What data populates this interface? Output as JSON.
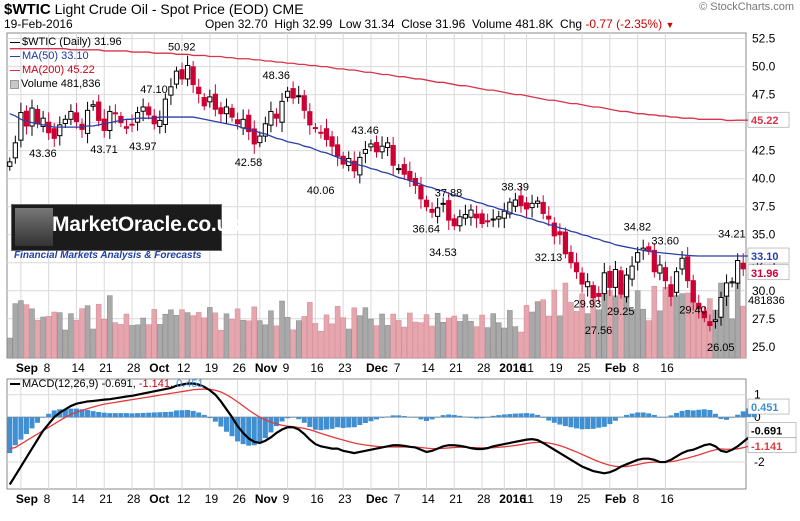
{
  "header": {
    "symbol": "$WTIC",
    "name": "Light Crude Oil - Spot Price (EOD)",
    "exchange": "CME",
    "date": "19-Feb-2016",
    "watermark": "© StockCharts.com",
    "open_label": "Open",
    "open": "32.70",
    "high_label": "High",
    "high": "32.99",
    "low_label": "Low",
    "low": "31.34",
    "close_label": "Close",
    "close": "31.96",
    "volume_label": "Volume",
    "volume": "481.8K",
    "chg_label": "Chg",
    "chg": "-0.77 (-2.35%)"
  },
  "legend": {
    "main": "$WTIC (Daily) 31.96",
    "ma50": "MA(50) 33.10",
    "ma200": "MA(200) 45.22",
    "volume": "Volume 481,836"
  },
  "macd_legend": {
    "label": "MACD(12,26,9)",
    "macd": "-0.691",
    "signal": "-1.141",
    "hist": "0.451"
  },
  "logo": {
    "text": "MarketOracle.co.uk",
    "tagline": "Financial Markets Analysis & Forecasts"
  },
  "colors": {
    "up": "#000000",
    "down": "#cc0033",
    "ma50": "#2b3ea8",
    "ma200": "#d8334a",
    "hist": "#3f8fd2",
    "grid": "#d9d9d9",
    "vol_up": "#a9a9a9",
    "vol_down": "#e6a6ae"
  },
  "chart_data": [
    {
      "type": "candlestick",
      "title": "$WTIC (Daily)",
      "ylim": [
        24,
        53
      ],
      "yticks": [
        25.0,
        27.5,
        30.0,
        32.5,
        35.0,
        37.5,
        40.0,
        42.5,
        45.0,
        47.5,
        50.0,
        52.5
      ],
      "ytick_labels": [
        "25.0",
        "27.5",
        "30.0",
        "32.5",
        "35.0",
        "37.5",
        "40.0",
        "42.5",
        "45.0",
        "47.5",
        "50.0",
        "52.5"
      ],
      "xtick_labels": [
        "Sep",
        "8",
        "14",
        "21",
        "28",
        "Oct",
        "12",
        "19",
        "26",
        "Nov",
        "9",
        "16",
        "23",
        "Dec",
        "7",
        "14",
        "21",
        "28",
        "2016",
        "11",
        "19",
        "25",
        "Feb",
        "8",
        "16"
      ],
      "xtick_bold": [
        "Sep",
        "Oct",
        "Nov",
        "Dec",
        "2016",
        "Feb"
      ],
      "grid": true,
      "annotations": [
        {
          "text": "50.92",
          "value": 50.92
        },
        {
          "text": "48.36",
          "value": 48.36
        },
        {
          "text": "47.10",
          "value": 47.1
        },
        {
          "text": "43.36",
          "value": 43.36
        },
        {
          "text": "43.71",
          "value": 43.71
        },
        {
          "text": "43.97",
          "value": 43.97
        },
        {
          "text": "42.58",
          "value": 42.58
        },
        {
          "text": "43.46",
          "value": 43.46
        },
        {
          "text": "40.06",
          "value": 40.06
        },
        {
          "text": "37.88",
          "value": 37.88
        },
        {
          "text": "36.64",
          "value": 36.64
        },
        {
          "text": "34.53",
          "value": 34.53
        },
        {
          "text": "38.39",
          "value": 38.39
        },
        {
          "text": "32.13",
          "value": 32.13
        },
        {
          "text": "29.93",
          "value": 29.93
        },
        {
          "text": "27.56",
          "value": 27.56
        },
        {
          "text": "29.25",
          "value": 29.25
        },
        {
          "text": "34.82",
          "value": 34.82
        },
        {
          "text": "33.60",
          "value": 33.6
        },
        {
          "text": "29.40",
          "value": 29.4
        },
        {
          "text": "26.05",
          "value": 26.05
        },
        {
          "text": "34.21",
          "value": 34.21
        }
      ],
      "closes": [
        41.5,
        43.2,
        45.9,
        44.7,
        46.3,
        44.9,
        45.4,
        44.1,
        43.6,
        44.8,
        45.3,
        46.0,
        45.1,
        44.4,
        46.1,
        46.6,
        45.2,
        44.3,
        46.0,
        45.8,
        45.0,
        44.5,
        44.8,
        45.9,
        46.4,
        45.7,
        44.9,
        45.2,
        47.1,
        48.2,
        49.6,
        48.9,
        50.1,
        48.4,
        47.6,
        46.5,
        47.3,
        46.2,
        45.8,
        46.4,
        45.5,
        44.9,
        45.3,
        44.2,
        43.1,
        43.8,
        44.9,
        46.0,
        45.4,
        46.9,
        47.8,
        47.2,
        47.4,
        46.1,
        44.8,
        44.5,
        44.1,
        43.5,
        42.9,
        42.0,
        41.3,
        41.8,
        40.7,
        41.9,
        42.6,
        43.1,
        42.4,
        42.9,
        43.2,
        41.2,
        40.9,
        40.4,
        39.9,
        39.4,
        38.2,
        37.5,
        37.0,
        37.4,
        37.8,
        36.3,
        35.8,
        36.6,
        36.8,
        37.2,
        36.5,
        36.0,
        36.2,
        36.4,
        36.6,
        37.1,
        37.9,
        38.1,
        37.6,
        37.3,
        37.8,
        38.0,
        36.9,
        36.4,
        34.9,
        35.0,
        33.3,
        32.5,
        31.7,
        30.6,
        30.8,
        29.4,
        29.5,
        31.6,
        30.3,
        31.9,
        29.7,
        31.4,
        32.2,
        33.4,
        33.8,
        33.6,
        31.7,
        32.3,
        30.9,
        29.5,
        31.7,
        32.9,
        30.9,
        29.0,
        28.4,
        27.6,
        26.9,
        27.4,
        29.4,
        30.7,
        30.8,
        32.7,
        31.96
      ],
      "ma50": [
        45.8,
        45.6,
        45.3,
        45.1,
        45.0,
        44.9,
        44.8,
        44.7,
        44.6,
        44.6,
        44.6,
        44.6,
        44.6,
        44.6,
        44.7,
        44.7,
        44.8,
        44.9,
        45.0,
        45.1,
        45.2,
        45.3,
        45.3,
        45.4,
        45.4,
        45.4,
        45.4,
        45.5,
        45.5,
        45.5,
        45.5,
        45.5,
        45.5,
        45.5,
        45.4,
        45.3,
        45.2,
        45.1,
        45.0,
        44.9,
        44.8,
        44.7,
        44.5,
        44.4,
        44.3,
        44.1,
        44.0,
        43.8,
        43.6,
        43.5,
        43.3,
        43.2,
        43.1,
        42.9,
        42.8,
        42.6,
        42.4,
        42.3,
        42.1,
        41.9,
        41.7,
        41.5,
        41.4,
        41.2,
        41.1,
        40.9,
        40.8,
        40.6,
        40.5,
        40.3,
        40.1,
        40.0,
        39.8,
        39.7,
        39.5,
        39.3,
        39.2,
        39.0,
        38.9,
        38.7,
        38.5,
        38.4,
        38.2,
        38.1,
        37.9,
        37.8,
        37.6,
        37.5,
        37.3,
        37.2,
        37.0,
        36.8,
        36.7,
        36.5,
        36.4,
        36.2,
        36.1,
        35.9,
        35.8,
        35.6,
        35.5,
        35.3,
        35.2,
        35.0,
        34.9,
        34.7,
        34.6,
        34.4,
        34.3,
        34.1,
        34.0,
        33.9,
        33.8,
        33.7,
        33.6,
        33.5,
        33.45,
        33.4,
        33.35,
        33.3,
        33.25,
        33.2,
        33.15,
        33.12,
        33.1,
        33.1,
        33.1,
        33.1,
        33.1,
        33.1,
        33.1,
        33.1,
        33.1,
        33.1,
        33.1
      ],
      "ma200": [
        51.6,
        51.6,
        51.6,
        51.6,
        51.6,
        51.6,
        51.6,
        51.6,
        51.6,
        51.6,
        51.6,
        51.5,
        51.5,
        51.5,
        51.5,
        51.5,
        51.5,
        51.4,
        51.4,
        51.4,
        51.4,
        51.4,
        51.3,
        51.3,
        51.3,
        51.3,
        51.2,
        51.2,
        51.2,
        51.2,
        51.1,
        51.1,
        51.1,
        51.0,
        51.0,
        51.0,
        50.9,
        50.9,
        50.9,
        50.8,
        50.8,
        50.7,
        50.7,
        50.7,
        50.6,
        50.6,
        50.5,
        50.5,
        50.4,
        50.4,
        50.3,
        50.3,
        50.2,
        50.2,
        50.1,
        50.1,
        50.0,
        50.0,
        49.9,
        49.8,
        49.8,
        49.7,
        49.7,
        49.6,
        49.5,
        49.5,
        49.4,
        49.3,
        49.3,
        49.2,
        49.1,
        49.1,
        49.0,
        48.9,
        48.9,
        48.8,
        48.7,
        48.6,
        48.6,
        48.5,
        48.4,
        48.3,
        48.3,
        48.2,
        48.1,
        48.0,
        47.9,
        47.9,
        47.8,
        47.7,
        47.6,
        47.5,
        47.5,
        47.4,
        47.3,
        47.2,
        47.1,
        47.0,
        47.0,
        46.9,
        46.8,
        46.7,
        46.7,
        46.6,
        46.5,
        46.4,
        46.4,
        46.3,
        46.2,
        46.1,
        46.0,
        46.0,
        45.9,
        45.8,
        45.8,
        45.7,
        45.7,
        45.6,
        45.6,
        45.5,
        45.5,
        45.4,
        45.4,
        45.4,
        45.3,
        45.3,
        45.3,
        45.3,
        45.3,
        45.2,
        45.2,
        45.22,
        45.22,
        45.22,
        45.22
      ],
      "last_ma50_label": "33.10",
      "last_ma200_label": "45.22",
      "last_close_label": "31.96",
      "last_volume_label": "481836"
    },
    {
      "type": "line",
      "title": "MACD(12,26,9)",
      "ylim": [
        -3.2,
        1.7
      ],
      "yticks": [
        1,
        0,
        -2
      ],
      "ytick_labels": [
        "1",
        "0",
        "-2"
      ],
      "series": [
        {
          "name": "MACD",
          "values": [
            -3.0,
            -2.6,
            -2.2,
            -1.8,
            -1.4,
            -1.0,
            -0.6,
            -0.3,
            0.0,
            0.2,
            0.35,
            0.5,
            0.6,
            0.65,
            0.7,
            0.72,
            0.75,
            0.78,
            0.8,
            0.84,
            0.88,
            0.92,
            0.95,
            1.0,
            1.05,
            1.1,
            1.15,
            1.2,
            1.25,
            1.3,
            1.4,
            1.45,
            1.5,
            1.5,
            1.45,
            1.35,
            1.2,
            1.0,
            0.7,
            0.35,
            0.0,
            -0.4,
            -0.7,
            -0.95,
            -1.1,
            -1.15,
            -1.05,
            -0.9,
            -0.7,
            -0.55,
            -0.45,
            -0.45,
            -0.55,
            -0.75,
            -1.0,
            -1.2,
            -1.3,
            -1.35,
            -1.4,
            -1.4,
            -1.5,
            -1.55,
            -1.6,
            -1.55,
            -1.5,
            -1.45,
            -1.4,
            -1.35,
            -1.3,
            -1.25,
            -1.25,
            -1.28,
            -1.32,
            -1.35,
            -1.45,
            -1.55,
            -1.5,
            -1.4,
            -1.3,
            -1.25,
            -1.25,
            -1.28,
            -1.32,
            -1.38,
            -1.42,
            -1.42,
            -1.38,
            -1.3,
            -1.25,
            -1.2,
            -1.15,
            -1.1,
            -1.05,
            -1.0,
            -0.98,
            -1.02,
            -1.15,
            -1.3,
            -1.45,
            -1.6,
            -1.75,
            -1.9,
            -2.05,
            -2.2,
            -2.3,
            -2.4,
            -2.45,
            -2.5,
            -2.45,
            -2.35,
            -2.2,
            -2.1,
            -2.0,
            -1.9,
            -1.85,
            -1.85,
            -1.9,
            -2.0,
            -2.0,
            -1.9,
            -1.75,
            -1.6,
            -1.5,
            -1.45,
            -1.35,
            -1.25,
            -1.2,
            -1.3,
            -1.5,
            -1.55,
            -1.45,
            -1.3,
            -1.1,
            -0.9,
            -0.691
          ]
        },
        {
          "name": "Signal",
          "values": [
            -1.4,
            -1.35,
            -1.2,
            -1.05,
            -0.9,
            -0.75,
            -0.6,
            -0.45,
            -0.3,
            -0.15,
            0.0,
            0.12,
            0.22,
            0.3,
            0.38,
            0.45,
            0.52,
            0.58,
            0.62,
            0.66,
            0.7,
            0.74,
            0.78,
            0.82,
            0.86,
            0.9,
            0.94,
            0.98,
            1.02,
            1.06,
            1.1,
            1.14,
            1.18,
            1.22,
            1.24,
            1.25,
            1.24,
            1.2,
            1.12,
            1.0,
            0.85,
            0.68,
            0.5,
            0.32,
            0.15,
            0.0,
            -0.12,
            -0.22,
            -0.3,
            -0.36,
            -0.4,
            -0.43,
            -0.46,
            -0.5,
            -0.56,
            -0.64,
            -0.72,
            -0.8,
            -0.88,
            -0.95,
            -1.02,
            -1.09,
            -1.15,
            -1.2,
            -1.24,
            -1.27,
            -1.3,
            -1.32,
            -1.33,
            -1.33,
            -1.33,
            -1.33,
            -1.33,
            -1.33,
            -1.35,
            -1.38,
            -1.4,
            -1.4,
            -1.39,
            -1.37,
            -1.35,
            -1.34,
            -1.34,
            -1.35,
            -1.36,
            -1.37,
            -1.37,
            -1.36,
            -1.34,
            -1.32,
            -1.29,
            -1.26,
            -1.22,
            -1.18,
            -1.14,
            -1.12,
            -1.12,
            -1.15,
            -1.2,
            -1.27,
            -1.35,
            -1.45,
            -1.55,
            -1.66,
            -1.77,
            -1.88,
            -1.98,
            -2.07,
            -2.14,
            -2.19,
            -2.21,
            -2.2,
            -2.16,
            -2.11,
            -2.06,
            -2.02,
            -2.0,
            -2.0,
            -2.0,
            -1.98,
            -1.94,
            -1.88,
            -1.82,
            -1.75,
            -1.68,
            -1.6,
            -1.52,
            -1.45,
            -1.42,
            -1.43,
            -1.43,
            -1.41,
            -1.36,
            -1.29,
            -1.2,
            -1.141
          ]
        }
      ],
      "last_macd_label": "-0.691",
      "last_signal_label": "-1.141",
      "last_hist_label": "0.451"
    }
  ]
}
